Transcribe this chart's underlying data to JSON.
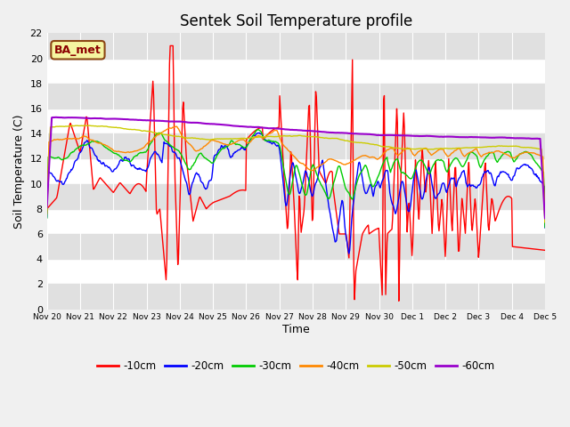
{
  "title": "Sentek Soil Temperature profile",
  "xlabel": "Time",
  "ylabel": "Soil Temperature (C)",
  "ylim": [
    0,
    22
  ],
  "label_box": "BA_met",
  "series": [
    {
      "label": "-10cm",
      "color": "#ff0000"
    },
    {
      "label": "-20cm",
      "color": "#0000ff"
    },
    {
      "label": "-30cm",
      "color": "#00cc00"
    },
    {
      "label": "-40cm",
      "color": "#ff8800"
    },
    {
      "label": "-50cm",
      "color": "#cccc00"
    },
    {
      "label": "-60cm",
      "color": "#9900cc"
    }
  ],
  "fig_bg": "#f0f0f0",
  "plot_bg": "#ffffff",
  "band_color": "#e0e0e0",
  "title_fontsize": 12,
  "tick_labels": [
    "Nov 20",
    "Nov 21",
    "Nov 22",
    "Nov 23",
    "Nov 24",
    "Nov 25",
    "Nov 26",
    "Nov 27",
    "Nov 28",
    "Nov 29",
    "Nov 30",
    "Dec 1",
    "Dec 2",
    "Dec 3",
    "Dec 4",
    "Dec 5"
  ],
  "yticks": [
    0,
    2,
    4,
    6,
    8,
    10,
    12,
    14,
    16,
    18,
    20,
    22
  ]
}
